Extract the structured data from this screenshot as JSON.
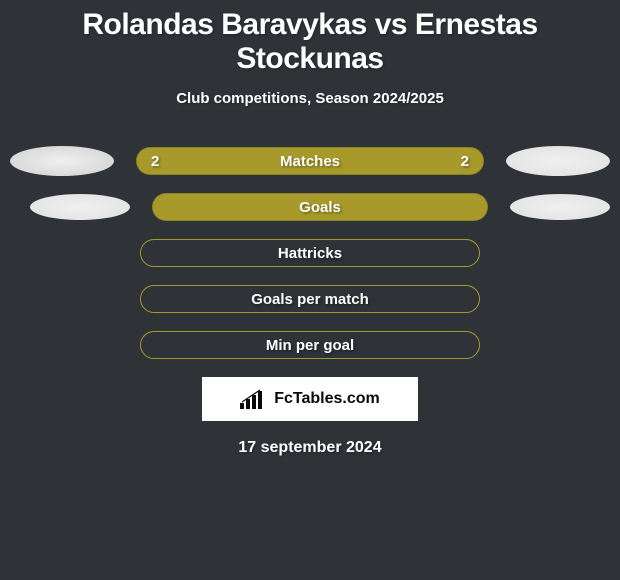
{
  "colors": {
    "background": "#2f3237",
    "text": "#ffffff",
    "barFill": "#a79a2a",
    "barBorder": "#a79a2a"
  },
  "title": "Rolandas Baravykas vs Ernestas Stockunas",
  "subtitle": "Club competitions, Season 2024/2025",
  "rows": [
    {
      "label": "Matches",
      "left": "2",
      "right": "2",
      "style": "filled",
      "showAvatars": "large"
    },
    {
      "label": "Goals",
      "left": "",
      "right": "",
      "style": "filled",
      "showAvatars": "small"
    },
    {
      "label": "Hattricks",
      "left": "",
      "right": "",
      "style": "outline",
      "showAvatars": "none"
    },
    {
      "label": "Goals per match",
      "left": "",
      "right": "",
      "style": "outline",
      "showAvatars": "none"
    },
    {
      "label": "Min per goal",
      "left": "",
      "right": "",
      "style": "outline",
      "showAvatars": "none"
    }
  ],
  "logo": {
    "text": "FcTables.com"
  },
  "date": "17 september 2024",
  "style": {
    "titleFontSize": 30,
    "subtitleFontSize": 15,
    "barLabelFontSize": 15,
    "barHeight": 28,
    "barRadius": 14
  }
}
